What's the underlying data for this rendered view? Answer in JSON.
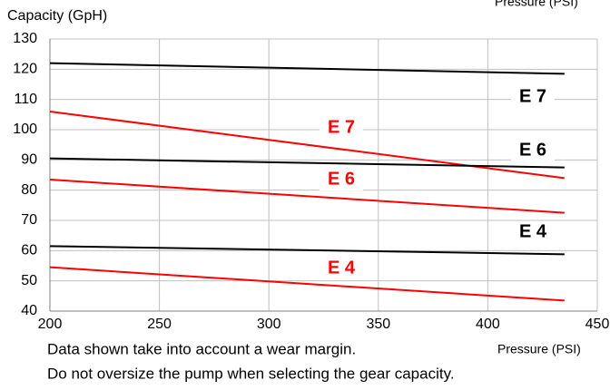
{
  "chart_data": {
    "type": "line",
    "y_label": "Capacity (GpH)",
    "x_label_top": "Pressure (PSI)",
    "x_label": "Pressure (PSI)",
    "notes": [
      "Data shown take into account a wear margin.",
      "Do not oversize the pump when selecting the gear capacity."
    ],
    "x": [
      200,
      435
    ],
    "series": [
      {
        "name": "E 7",
        "color": "#000000",
        "values": [
          122,
          118.5
        ]
      },
      {
        "name": "E 7",
        "color": "#ff0000",
        "values": [
          106,
          84
        ]
      },
      {
        "name": "E 6",
        "color": "#000000",
        "values": [
          90.5,
          87.5
        ]
      },
      {
        "name": "E 6",
        "color": "#ff0000",
        "values": [
          83.5,
          72.5
        ]
      },
      {
        "name": "E 4",
        "color": "#000000",
        "values": [
          61.5,
          58.8
        ]
      },
      {
        "name": "E 4",
        "color": "#ff0000",
        "values": [
          54.5,
          43.5
        ]
      }
    ],
    "xlim": [
      200,
      450
    ],
    "xticks": [
      200,
      250,
      300,
      350,
      400,
      450
    ],
    "ylim": [
      40,
      130
    ],
    "yticks": [
      40,
      50,
      60,
      70,
      80,
      90,
      100,
      110,
      120,
      130
    ],
    "grid": true
  }
}
